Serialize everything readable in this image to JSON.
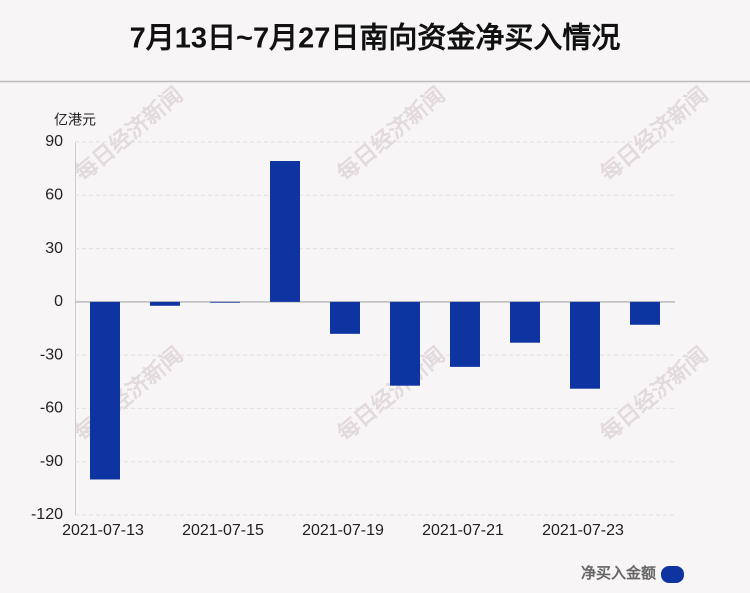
{
  "chart_data": {
    "type": "bar",
    "title": "7月13日~7月27日南向资金净买入情况",
    "y_unit": "亿港元",
    "watermark": "每日经济新闻",
    "categories": [
      "2021-07-13",
      null,
      "2021-07-15",
      null,
      "2021-07-19",
      null,
      "2021-07-21",
      null,
      "2021-07-23",
      null
    ],
    "series": [
      {
        "name": "净买入金额",
        "color": "#0d34a0",
        "values": [
          -100,
          -2.2,
          -0.3,
          79.3,
          -18,
          -47.2,
          -36.6,
          -23,
          -48.9,
          -12.9
        ]
      }
    ],
    "ylim": [
      -120,
      90
    ],
    "yticks": [
      -120,
      -90,
      -60,
      -30,
      0,
      30,
      60,
      90
    ],
    "grid": true
  }
}
